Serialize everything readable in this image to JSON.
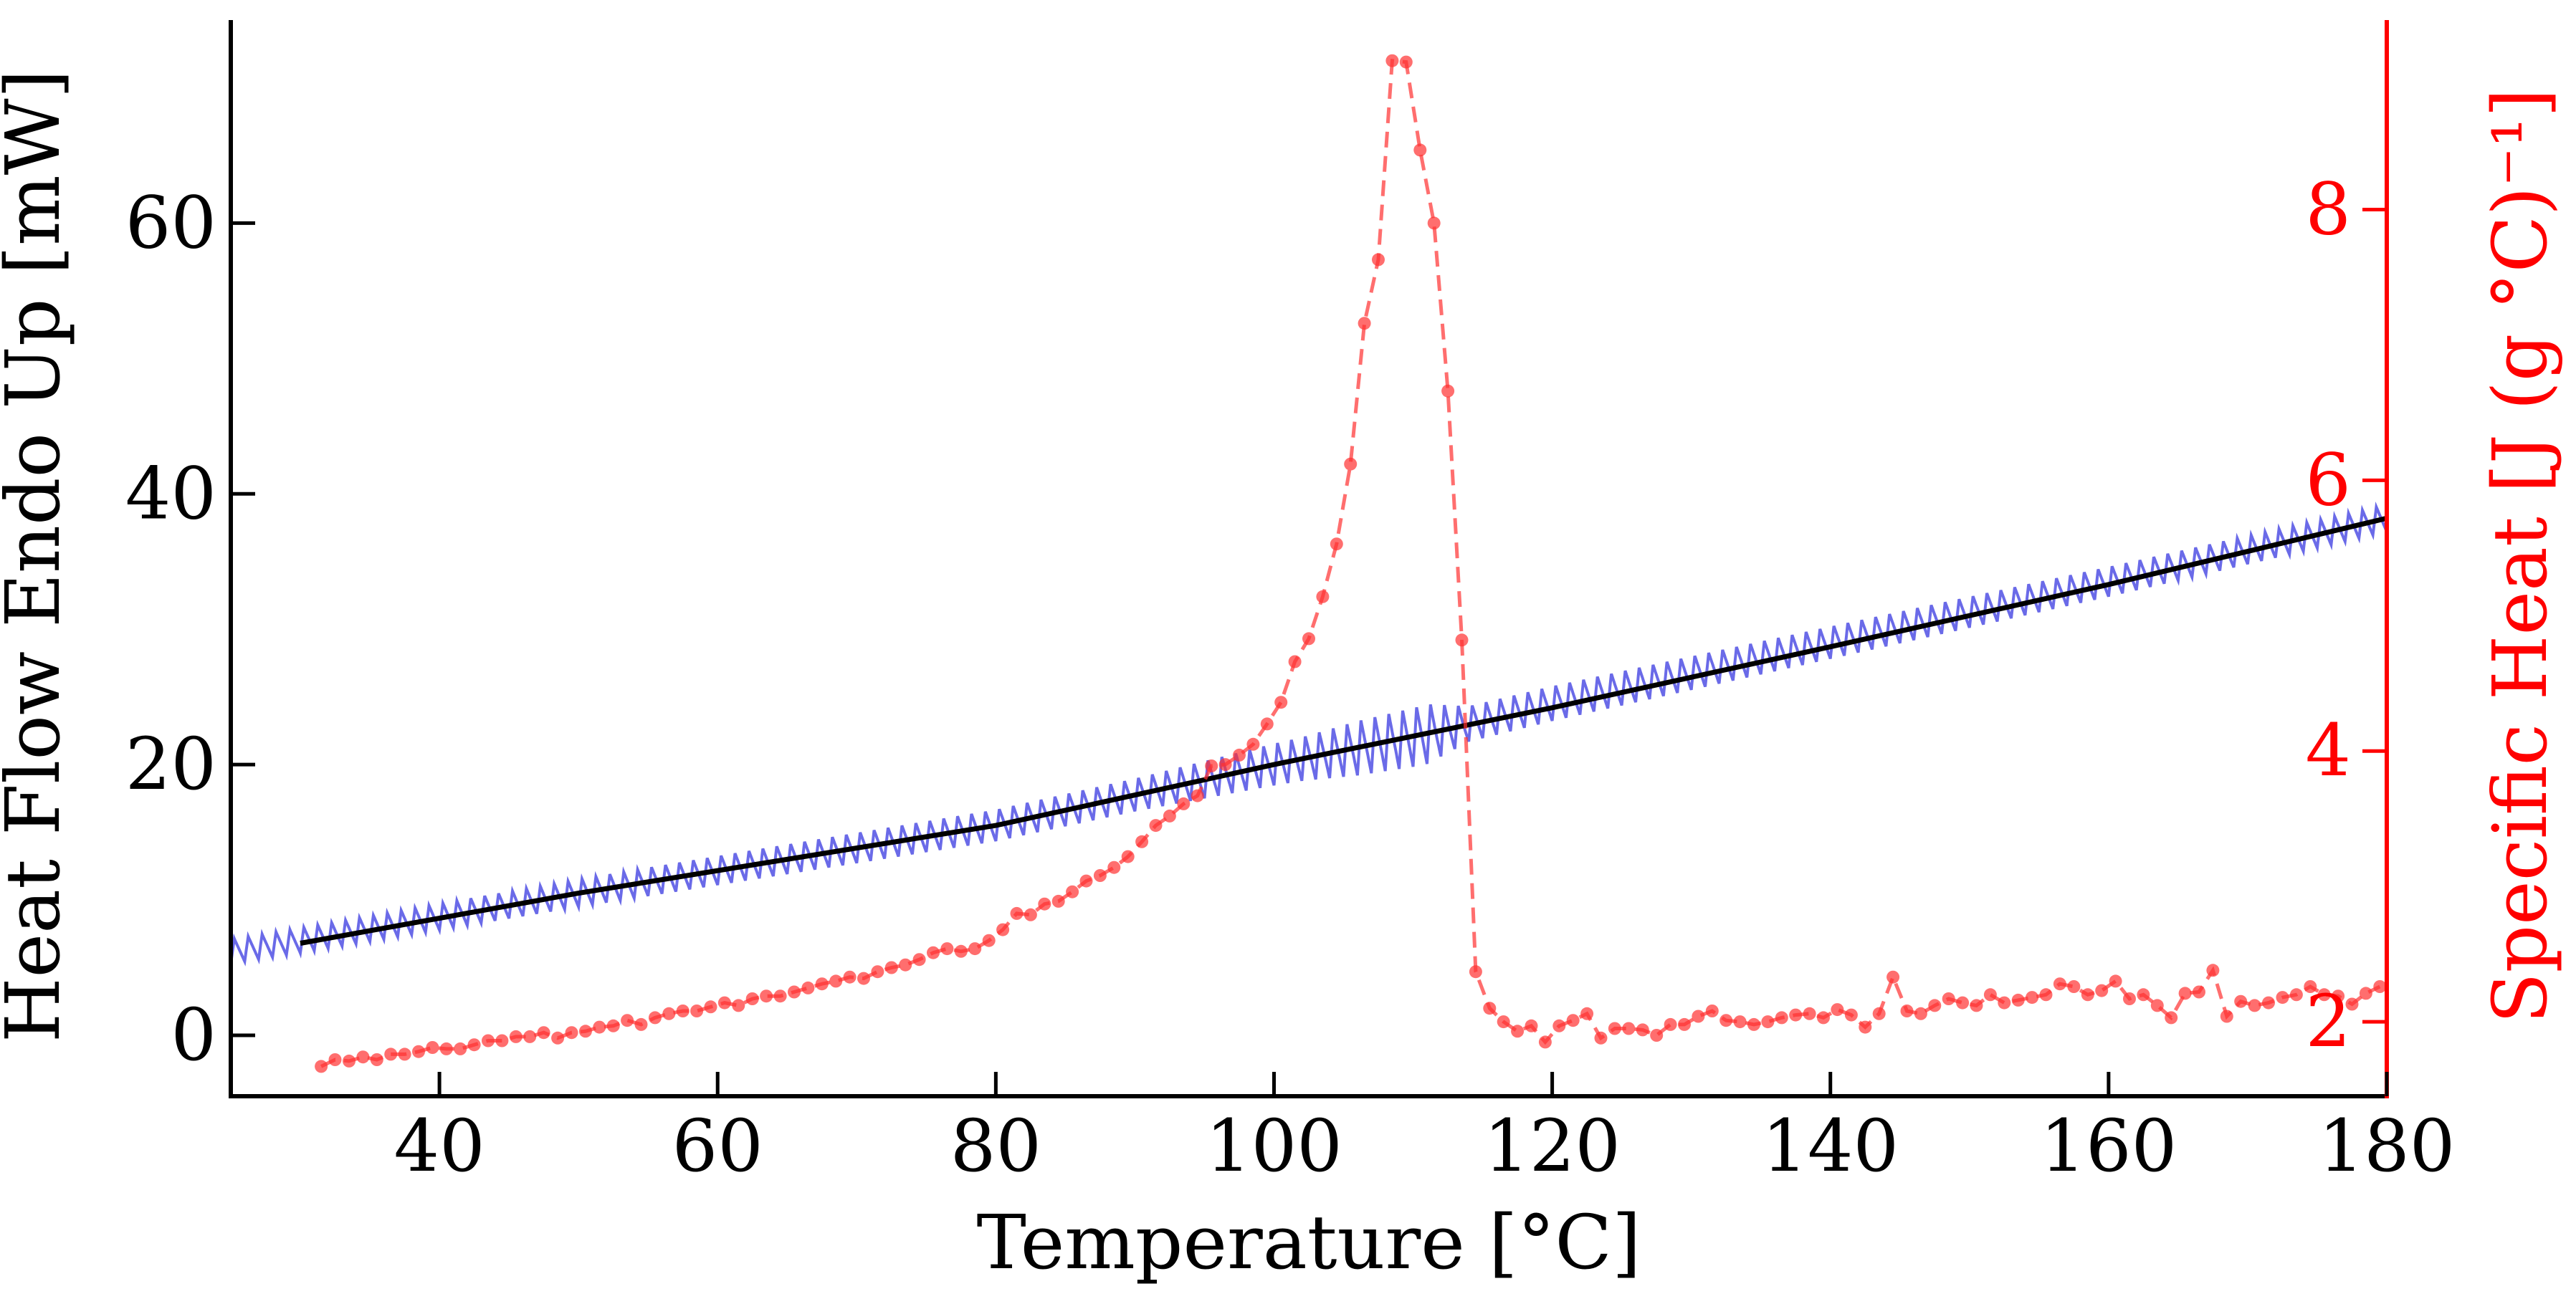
{
  "chart_data": {
    "type": "line",
    "title": "",
    "xlabel": "Temperature [°C]",
    "ylabel_left": "Heat Flow Endo Up [mW]",
    "ylabel_right": "Specific Heat [J (g °C)⁻¹]",
    "xlim": [
      25,
      180
    ],
    "ylim_left": [
      -4.5,
      75
    ],
    "ylim_right": [
      1.45,
      9.4
    ],
    "x_ticks": [
      40,
      60,
      80,
      100,
      120,
      140,
      160,
      180
    ],
    "y_left_ticks": [
      0,
      20,
      40,
      60
    ],
    "y_right_ticks": [
      2,
      4,
      6,
      8
    ],
    "grid": false,
    "legend": "none",
    "colors": {
      "modulated": "#5a5ae6",
      "underlying": "#000000",
      "specific_heat": "#ff3030",
      "right_axis": "#ff0000",
      "left_axis": "#000000"
    },
    "series": [
      {
        "axis": "left",
        "style": "oscillating solid line",
        "x_range": [
          25,
          180
        ],
        "modulation_period_c": 1.0,
        "center_points": [
          [
            25,
            6.2
          ],
          [
            30,
            7.0
          ],
          [
            50,
            10.5
          ],
          [
            80,
            15.5
          ],
          [
            100,
            20.0
          ],
          [
            105,
            21.0
          ],
          [
            110,
            22.0
          ],
          [
            120,
            24.5
          ],
          [
            140,
            29.0
          ],
          [
            160,
            33.5
          ],
          [
            180,
            38.2
          ]
        ],
        "amplitude_points": [
          [
            25,
            0.9
          ],
          [
            90,
            1.2
          ],
          [
            102,
            1.6
          ],
          [
            106,
            2.0
          ],
          [
            111,
            2.2
          ],
          [
            114,
            1.3
          ],
          [
            180,
            1.0
          ]
        ]
      },
      {
        "axis": "left",
        "style": "solid line",
        "x": [
          30,
          50,
          80,
          100,
          120,
          140,
          160,
          180
        ],
        "y": [
          6.8,
          10.5,
          15.5,
          20.0,
          24.2,
          28.7,
          33.3,
          38.2
        ]
      },
      {
        "axis": "right",
        "style": "dashed line with circle markers",
        "x": [
          31.5,
          32.5,
          33.5,
          34.5,
          35.5,
          36.5,
          37.5,
          38.5,
          39.5,
          40.5,
          41.5,
          42.5,
          43.5,
          44.5,
          45.5,
          46.5,
          47.5,
          48.5,
          49.5,
          50.5,
          51.5,
          52.5,
          53.5,
          54.5,
          55.5,
          56.5,
          57.5,
          58.5,
          59.5,
          60.5,
          61.5,
          62.5,
          63.5,
          64.5,
          65.5,
          66.5,
          67.5,
          68.5,
          69.5,
          70.5,
          71.5,
          72.5,
          73.5,
          74.5,
          75.5,
          76.5,
          77.5,
          78.5,
          79.5,
          80.5,
          81.5,
          82.5,
          83.5,
          84.5,
          85.5,
          86.5,
          87.5,
          88.5,
          89.5,
          90.5,
          91.5,
          92.5,
          93.5,
          94.5,
          95.5,
          96.5,
          97.5,
          98.5,
          99.5,
          100.5,
          101.5,
          102.5,
          103.5,
          104.5,
          105.5,
          106.5,
          107.5,
          108.5,
          109.5,
          110.5,
          111.5,
          112.5,
          113.5,
          114.5,
          115.5,
          116.5,
          117.5,
          118.5,
          119.5,
          120.5,
          121.5,
          122.5,
          123.5,
          124.5,
          125.5,
          126.5,
          127.5,
          128.5,
          129.5,
          130.5,
          131.5,
          132.5,
          133.5,
          134.5,
          135.5,
          136.5,
          137.5,
          138.5,
          139.5,
          140.5,
          141.5,
          142.5,
          143.5,
          144.5,
          145.5,
          146.5,
          147.5,
          148.5,
          149.5,
          150.5,
          151.5,
          152.5,
          153.5,
          154.5,
          155.5,
          156.5,
          157.5,
          158.5,
          159.5,
          160.5,
          161.5,
          162.5,
          163.5,
          164.5,
          165.5,
          166.5,
          167.5,
          168.5,
          169.5,
          170.5,
          171.5,
          172.5,
          173.5,
          174.5,
          175.5,
          176.5,
          177.5,
          178.5,
          179.5
        ],
        "y": [
          1.67,
          1.72,
          1.71,
          1.74,
          1.72,
          1.76,
          1.76,
          1.78,
          1.81,
          1.8,
          1.8,
          1.83,
          1.86,
          1.86,
          1.89,
          1.89,
          1.92,
          1.88,
          1.92,
          1.93,
          1.96,
          1.97,
          2.01,
          1.98,
          2.03,
          2.06,
          2.08,
          2.08,
          2.11,
          2.14,
          2.12,
          2.17,
          2.19,
          2.19,
          2.22,
          2.25,
          2.28,
          2.3,
          2.33,
          2.32,
          2.37,
          2.4,
          2.42,
          2.46,
          2.51,
          2.54,
          2.52,
          2.54,
          2.6,
          2.68,
          2.8,
          2.79,
          2.87,
          2.89,
          2.96,
          3.04,
          3.08,
          3.14,
          3.22,
          3.33,
          3.45,
          3.52,
          3.61,
          3.67,
          3.89,
          3.9,
          3.97,
          4.05,
          4.2,
          4.36,
          4.66,
          4.83,
          5.14,
          5.53,
          6.12,
          7.16,
          7.63,
          9.1,
          9.09,
          8.44,
          7.9,
          6.66,
          4.82,
          2.37,
          2.1,
          2.0,
          1.93,
          1.97,
          1.85,
          1.97,
          2.01,
          2.06,
          1.88,
          1.95,
          1.95,
          1.94,
          1.9,
          1.98,
          1.98,
          2.04,
          2.08,
          2.01,
          2.0,
          1.98,
          2.0,
          2.03,
          2.05,
          2.06,
          2.03,
          2.09,
          2.05,
          1.96,
          2.06,
          2.33,
          2.08,
          2.06,
          2.12,
          2.17,
          2.14,
          2.12,
          2.2,
          2.14,
          2.16,
          2.18,
          2.2,
          2.28,
          2.26,
          2.2,
          2.23,
          2.3,
          2.17,
          2.2,
          2.12,
          2.03,
          2.21,
          2.22,
          2.38,
          2.04,
          2.15,
          2.12,
          2.14,
          2.18,
          2.2,
          2.26,
          2.2,
          2.19,
          2.13,
          2.21,
          2.26
        ]
      }
    ]
  }
}
